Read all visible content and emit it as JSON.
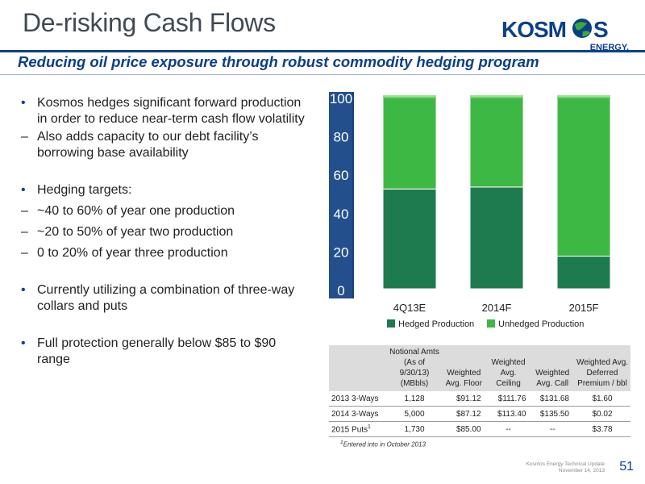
{
  "slide": {
    "title": "De-risking Cash Flows",
    "subtitle": "Reducing oil price exposure through robust commodity hedging program",
    "logo": {
      "name": "KOSMOS",
      "tag": "ENERGY.",
      "brand_color": "#0b3f8a",
      "accent_color": "#3aaa35"
    }
  },
  "bullets": {
    "b1": "Kosmos hedges significant forward production in order to reduce near-term cash flow volatility",
    "b1_sub1": "Also adds capacity to our debt facility’s borrowing base availability",
    "b2": "Hedging targets:",
    "b2_sub1": "~40 to 60% of year one production",
    "b2_sub2": "~20 to 50% of year two production",
    "b2_sub3": "0 to 20% of year three production",
    "b3": "Currently utilizing a combination of three-way collars and puts",
    "b4": "Full protection generally below $85 to $90 range"
  },
  "chart_data": {
    "type": "bar",
    "stacked": true,
    "categories": [
      "4Q13E",
      "2014F",
      "2015F"
    ],
    "series": [
      {
        "name": "Hedged Production",
        "values": [
          52,
          53,
          17
        ],
        "color": "#1e7a4f"
      },
      {
        "name": "Unhedged Production",
        "values": [
          48,
          47,
          83
        ],
        "color": "#3db845"
      }
    ],
    "ylim": [
      0,
      100
    ],
    "yticks": [
      "0",
      "20",
      "40",
      "60",
      "80",
      "100"
    ],
    "legend_position": "bottom",
    "axis_color": "#234f8c"
  },
  "table": {
    "headers": [
      "",
      "Notional Amts (As of 9/30/13) (MBbls)",
      "Weighted Avg. Floor",
      "Weighted Avg. Ceiling",
      "Weighted Avg. Call",
      "Weighted Avg. Deferred Premium / bbl"
    ],
    "rows": [
      [
        "2013 3-Ways",
        "1,128",
        "$91.12",
        "$111.76",
        "$131.68",
        "$1.60"
      ],
      [
        "2014 3-Ways",
        "5,000",
        "$87.12",
        "$113.40",
        "$135.50",
        "$0.02"
      ],
      [
        "2015 Puts",
        "1,730",
        "$85.00",
        "--",
        "--",
        "$3.78"
      ]
    ],
    "footnote_marker": "1",
    "footnote": "Entered into in October 2013"
  },
  "footer": {
    "line1": "Kosmos Energy Technical Update",
    "line2": "November 14, 2013",
    "page": "51"
  }
}
